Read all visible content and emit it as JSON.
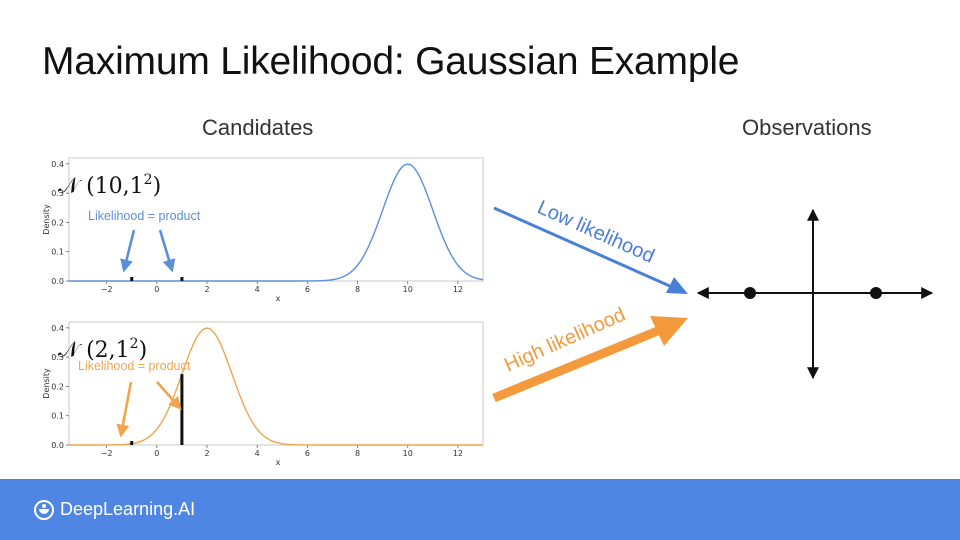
{
  "slide": {
    "title": "Maximum Likelihood: Gaussian Example",
    "candidates_heading": "Candidates",
    "observations_heading": "Observations"
  },
  "footer": {
    "brand": "DeepLearning.AI",
    "background": "#4f86e4",
    "logo_icon": "deeplearning-ai-logo-icon"
  },
  "colors": {
    "blue": "#5b8fd9",
    "orange": "#f0a44c",
    "arrow_blue": "#4a7fd8",
    "arrow_orange": "#f29a3c"
  },
  "chart_data": [
    {
      "type": "line",
      "distribution_label": "𝒩 (10,1",
      "distribution_sup": "2",
      "distribution_close": ")",
      "annotation": "Likelihood = product",
      "mu": 10,
      "sigma": 1,
      "xlim": [
        -3.5,
        13
      ],
      "ylim": [
        0,
        0.42
      ],
      "xticks": [
        -2,
        0,
        2,
        4,
        6,
        8,
        10,
        12
      ],
      "xtick_labels": [
        "−2",
        "0",
        "2",
        "4",
        "6",
        "8",
        "10",
        "12"
      ],
      "yticks": [
        0.0,
        0.1,
        0.2,
        0.3,
        0.4
      ],
      "ytick_labels": [
        "0.0",
        "0.1",
        "0.2",
        "0.3",
        "0.4"
      ],
      "xlabel": "x",
      "ylabel": "Density",
      "observations_x": [
        -1,
        1
      ],
      "color": "#5b8fd9"
    },
    {
      "type": "line",
      "distribution_label": "𝒩 (2,1",
      "distribution_sup": "2",
      "distribution_close": ")",
      "annotation": "Likelihood = product",
      "mu": 2,
      "sigma": 1,
      "xlim": [
        -3.5,
        13
      ],
      "ylim": [
        0,
        0.42
      ],
      "xticks": [
        -2,
        0,
        2,
        4,
        6,
        8,
        10,
        12
      ],
      "xtick_labels": [
        "−2",
        "0",
        "2",
        "4",
        "6",
        "8",
        "10",
        "12"
      ],
      "yticks": [
        0.0,
        0.1,
        0.2,
        0.3,
        0.4
      ],
      "ytick_labels": [
        "0.0",
        "0.1",
        "0.2",
        "0.3",
        "0.4"
      ],
      "xlabel": "x",
      "ylabel": "Density",
      "observations_x": [
        -1,
        1
      ],
      "color": "#f0a44c"
    }
  ],
  "arrows": {
    "low": "Low likelihood",
    "high": "High likelihood"
  },
  "observations": {
    "points_x": [
      -1,
      1
    ]
  }
}
